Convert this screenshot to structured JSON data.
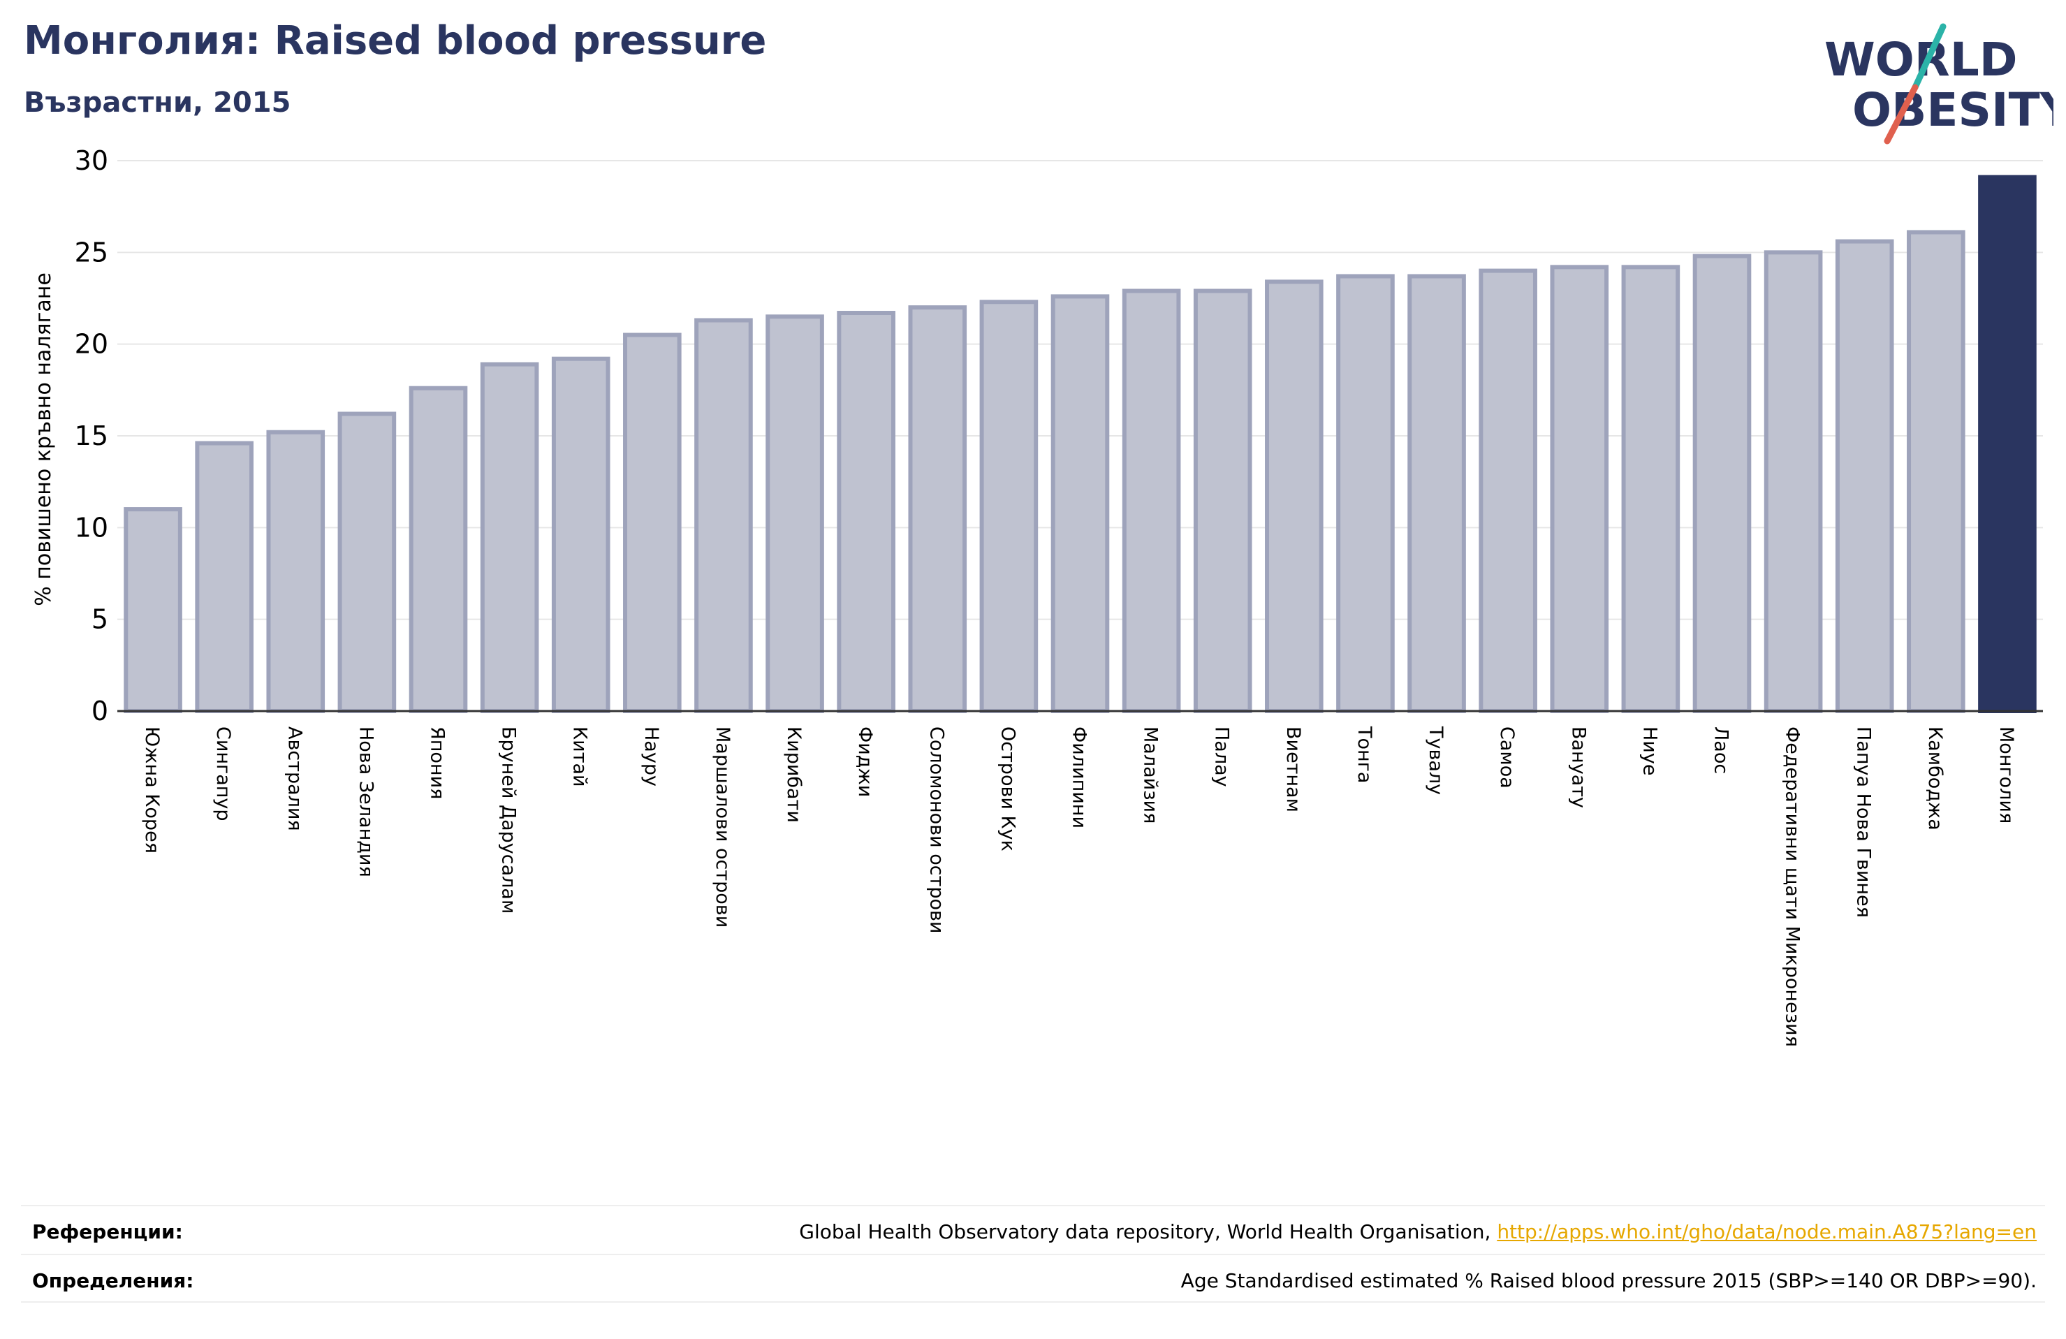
{
  "header": {
    "title": "Монголия: Raised blood pressure",
    "subtitle": "Възрастни, 2015"
  },
  "logo": {
    "line1": "WORLD",
    "line2": "OBESITY",
    "colors": {
      "text": "#2a3560",
      "slash_red": "#e0604e",
      "slash_teal": "#2bb3a8"
    }
  },
  "colors": {
    "bar_fill": "#bfc2d0",
    "bar_edge": "#9ea3bb",
    "highlight": "#2a3560",
    "grid": "#e6e6e6",
    "axis": "#333333"
  },
  "chart_data": {
    "type": "bar",
    "ylabel": "% повишено кръвно налягане",
    "ylim": [
      0,
      30
    ],
    "yticks": [
      0,
      5,
      10,
      15,
      20,
      25,
      30
    ],
    "grid": true,
    "highlight_category": "Монголия",
    "categories": [
      "Южна Корея",
      "Сингапур",
      "Австралия",
      "Нова Зеландия",
      "Япония",
      "Бруней Дарусалам",
      "Китай",
      "Науру",
      "Маршалови острови",
      "Кирибати",
      "Фиджи",
      "Соломонови острови",
      "Острови Кук",
      "Филипини",
      "Малайзия",
      "Палау",
      "Виетнам",
      "Тонга",
      "Тувалу",
      "Самоа",
      "Вануату",
      "Ниуе",
      "Лаос",
      "Федеративни щати Микронезия",
      "Папуа Нова Гвинея",
      "Камбоджа",
      "Монголия"
    ],
    "values": [
      11.0,
      14.6,
      15.2,
      16.2,
      17.6,
      18.9,
      19.2,
      20.5,
      21.3,
      21.5,
      21.7,
      22.0,
      22.3,
      22.6,
      22.9,
      22.9,
      23.4,
      23.7,
      23.7,
      24.0,
      24.2,
      24.2,
      24.8,
      25.0,
      25.6,
      26.1,
      29.1
    ]
  },
  "footer": {
    "references_label": "Референции:",
    "references_text": "Global Health Observatory data repository, World Health Organisation, ",
    "references_link": "http://apps.who.int/gho/data/node.main.A875?lang=en",
    "definitions_label": "Определения:",
    "definitions_text": "Age Standardised estimated % Raised blood pressure 2015 (SBP>=140 OR DBP>=90)."
  }
}
